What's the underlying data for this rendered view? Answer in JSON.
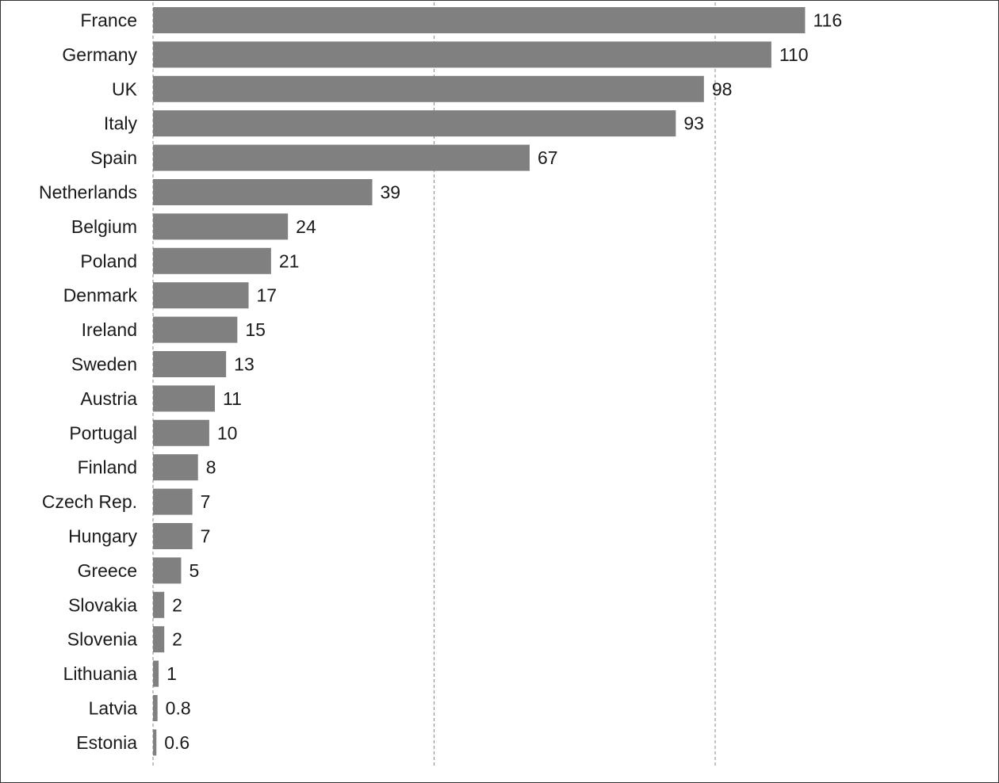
{
  "chart_data": {
    "type": "bar",
    "orientation": "horizontal",
    "categories": [
      "France",
      "Germany",
      "UK",
      "Italy",
      "Spain",
      "Netherlands",
      "Belgium",
      "Poland",
      "Denmark",
      "Ireland",
      "Sweden",
      "Austria",
      "Portugal",
      "Finland",
      "Czech Rep.",
      "Hungary",
      "Greece",
      "Slovakia",
      "Slovenia",
      "Lithuania",
      "Latvia",
      "Estonia"
    ],
    "values": [
      116,
      110,
      98,
      93,
      67,
      39,
      24,
      21,
      17,
      15,
      13,
      11,
      10,
      8,
      7,
      7,
      5,
      2,
      2,
      1,
      0.8,
      0.6
    ],
    "value_labels": [
      "116",
      "110",
      "98",
      "93",
      "67",
      "39",
      "24",
      "21",
      "17",
      "15",
      "13",
      "11",
      "10",
      "8",
      "7",
      "7",
      "5",
      "2",
      "2",
      "1",
      "0.8",
      "0.6"
    ],
    "title": "",
    "xlabel": "",
    "ylabel": "",
    "xlim": [
      0,
      150
    ],
    "gridlines_at": [
      0,
      50,
      100
    ],
    "grid": true,
    "grid_style": "dashed",
    "bar_color": "#808080",
    "legend": "none"
  }
}
